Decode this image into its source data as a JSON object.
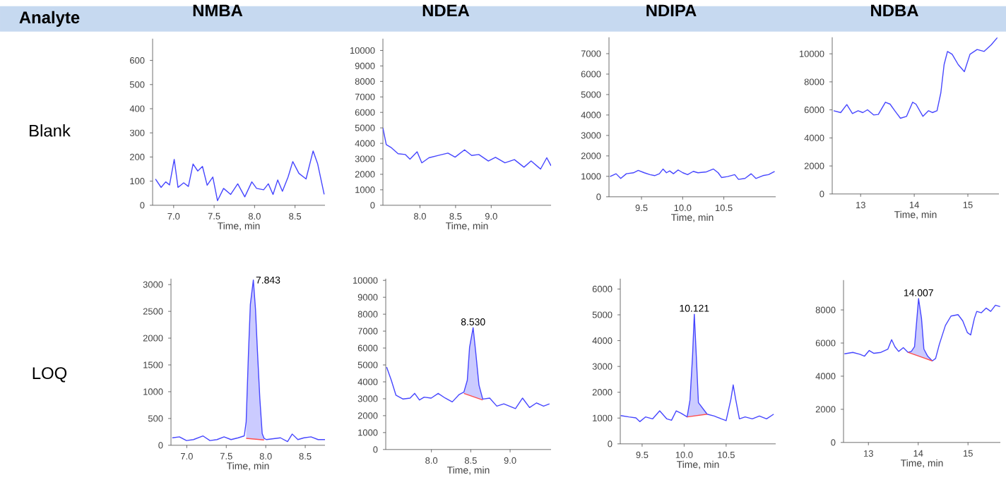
{
  "chart_data": [
    {
      "type": "other",
      "title": "Analyte",
      "annotations": [
        "Blank",
        "LOQ"
      ]
    },
    {
      "type": "line",
      "title": "NMBA",
      "xlabel": "Time, min",
      "xlim": [
        6.74,
        8.87
      ],
      "xticks": [
        {
          "value": 7.0,
          "label": "7.0"
        },
        7.5,
        {
          "value": 8.0,
          "label": "8.0"
        },
        8.5
      ],
      "ylim": [
        0,
        690
      ],
      "yticks": [
        0,
        100,
        200,
        300,
        400,
        500,
        600
      ],
      "series": [
        {
          "color": "#4646ff",
          "x": [
            6.775,
            6.845,
            6.902,
            6.949,
            7.007,
            7.054,
            7.124,
            7.182,
            7.24,
            7.298,
            7.356,
            7.414,
            7.484,
            7.542,
            7.617,
            7.705,
            7.792,
            7.879,
            7.966,
            8.025,
            8.112,
            8.17,
            8.228,
            8.286,
            8.344,
            8.414,
            8.472,
            8.548,
            8.636,
            8.723,
            8.78,
            8.86
          ],
          "values": [
            109,
            74,
            97,
            84,
            190,
            74,
            93,
            78,
            171,
            142,
            161,
            83,
            117,
            19,
            70,
            45,
            89,
            35,
            97,
            70,
            64,
            89,
            45,
            105,
            58,
            117,
            181,
            132,
            109,
            225,
            171,
            45
          ]
        }
      ]
    },
    {
      "type": "line",
      "title": "NDEA",
      "xlabel": "Time, min",
      "xlim": [
        7.48,
        9.84
      ],
      "xticks": [
        {
          "value": 8.0,
          "label": "8.0"
        },
        8.5,
        {
          "value": 9.0,
          "label": "9.0"
        }
      ],
      "ylim": [
        0,
        10760
      ],
      "yticks": [
        0,
        1000,
        2000,
        3000,
        4000,
        5000,
        6000,
        7000,
        8000,
        9000,
        10000
      ],
      "series": [
        {
          "color": "#4646ff",
          "x": [
            7.48,
            7.527,
            7.593,
            7.693,
            7.793,
            7.86,
            7.96,
            8.026,
            8.126,
            8.26,
            8.393,
            8.493,
            8.626,
            8.726,
            8.826,
            8.96,
            9.06,
            9.193,
            9.326,
            9.46,
            9.56,
            9.693,
            9.78,
            9.84
          ],
          "values": [
            4990,
            3920,
            3740,
            3330,
            3280,
            2980,
            3460,
            2740,
            3070,
            3220,
            3370,
            3110,
            3580,
            3220,
            3280,
            2860,
            3100,
            2740,
            2950,
            2460,
            2860,
            2340,
            3070,
            2550
          ]
        }
      ]
    },
    {
      "type": "line",
      "title": "NDIPA",
      "xlabel": "Time, min",
      "xlim": [
        9.105,
        11.13
      ],
      "xticks": [
        9.5,
        {
          "value": 10.0,
          "label": "10.0"
        },
        10.5
      ],
      "ylim": [
        0,
        7800
      ],
      "yticks": [
        0,
        1000,
        2000,
        3000,
        4000,
        5000,
        6000,
        7000
      ],
      "series": [
        {
          "color": "#4646ff",
          "x": [
            9.117,
            9.191,
            9.248,
            9.316,
            9.402,
            9.46,
            9.534,
            9.602,
            9.659,
            9.717,
            9.762,
            9.803,
            9.842,
            9.888,
            9.945,
            10.002,
            10.06,
            10.129,
            10.186,
            10.289,
            10.374,
            10.431,
            10.472,
            10.546,
            10.632,
            10.678,
            10.757,
            10.832,
            10.889,
            10.975,
            11.043,
            11.117
          ],
          "values": [
            990,
            1128,
            898,
            1128,
            1175,
            1290,
            1175,
            1083,
            1036,
            1128,
            1359,
            1175,
            1267,
            1128,
            1313,
            1175,
            1083,
            1244,
            1175,
            1221,
            1359,
            1175,
            944,
            990,
            1083,
            852,
            898,
            1128,
            898,
            1036,
            1083,
            1244
          ]
        }
      ]
    },
    {
      "type": "line",
      "title": "NDBA",
      "xlabel": "Time, min",
      "xlim": [
        12.47,
        15.58
      ],
      "xticks": [
        13,
        14,
        15
      ],
      "ylim": [
        0,
        11180
      ],
      "yticks": [
        0,
        2000,
        4000,
        6000,
        8000,
        10000
      ],
      "series": [
        {
          "color": "#4646ff",
          "x": [
            12.496,
            12.628,
            12.742,
            12.847,
            12.953,
            13.041,
            13.128,
            13.242,
            13.33,
            13.462,
            13.549,
            13.637,
            13.742,
            13.857,
            13.97,
            14.032,
            14.162,
            14.267,
            14.338,
            14.425,
            14.496,
            14.557,
            14.62,
            14.707,
            14.82,
            14.935,
            15.04,
            15.173,
            15.304,
            15.436,
            15.549
          ],
          "values": [
            5941,
            5807,
            6377,
            5740,
            5941,
            5807,
            6008,
            5639,
            5673,
            6546,
            6411,
            5941,
            5404,
            5539,
            6546,
            6411,
            5539,
            5941,
            5807,
            5941,
            7217,
            9231,
            10171,
            9969,
            9231,
            8728,
            9969,
            10305,
            10171,
            10641,
            11150
          ]
        }
      ]
    },
    {
      "type": "line",
      "xlabel": "Time, min",
      "xlim": [
        6.8,
        8.75
      ],
      "xticks": [
        {
          "value": 7.0,
          "label": "7.0"
        },
        7.5,
        {
          "value": 8.0,
          "label": "8.0"
        },
        8.5
      ],
      "ylim": [
        0,
        3110
      ],
      "yticks": [
        0,
        500,
        1000,
        1500,
        2000,
        2500,
        3000
      ],
      "annotations": [
        {
          "text": "7.843",
          "x": 7.843,
          "y": 3085
        }
      ],
      "series": [
        {
          "color": "#4646ff",
          "x": [
            6.817,
            6.907,
            6.996,
            7.085,
            7.204,
            7.293,
            7.383,
            7.472,
            7.561,
            7.651,
            7.728,
            7.752,
            7.782,
            7.805,
            7.843,
            7.87,
            7.895,
            7.925,
            7.955,
            7.978,
            8.008,
            8.097,
            8.186,
            8.276,
            8.335,
            8.407,
            8.484,
            8.573,
            8.663,
            8.75
          ],
          "values": [
            139,
            157,
            88,
            106,
            175,
            88,
            106,
            157,
            106,
            139,
            175,
            438,
            1753,
            2629,
            3085,
            2542,
            1753,
            876,
            219,
            131,
            106,
            123,
            139,
            69,
            210,
            106,
            139,
            157,
            106,
            106
          ],
          "lower": [
            null,
            null,
            null,
            null,
            null,
            null,
            null,
            null,
            null,
            null,
            null,
            130,
            126,
            123,
            118,
            114,
            111,
            107,
            103,
            100,
            null,
            null,
            null,
            null,
            null,
            null,
            null,
            null,
            null,
            null
          ],
          "upper": [
            null,
            null,
            null,
            null,
            null,
            null,
            null,
            null,
            null,
            null,
            null,
            438,
            1753,
            2629,
            3085,
            2542,
            1753,
            876,
            219,
            131,
            null,
            null,
            null,
            null,
            null,
            null,
            null,
            null,
            null,
            null
          ]
        },
        {
          "color": "#ff4d4d",
          "x": [
            7.752,
            7.978
          ],
          "values": [
            130,
            100
          ]
        }
      ]
    },
    {
      "type": "line",
      "xlabel": "Time, min",
      "xlim": [
        7.42,
        9.52
      ],
      "xticks": [
        {
          "value": 8.0,
          "label": "8.0"
        },
        8.5,
        {
          "value": 9.0,
          "label": "9.0"
        }
      ],
      "ylim": [
        0,
        10100
      ],
      "yticks": [
        0,
        1000,
        2000,
        3000,
        4000,
        5000,
        6000,
        7000,
        8000,
        9000,
        10000
      ],
      "annotations": [
        {
          "text": "8.530",
          "x": 8.53,
          "y": 7200
        }
      ],
      "series": [
        {
          "color": "#4646ff",
          "x": [
            7.431,
            7.491,
            7.55,
            7.64,
            7.729,
            7.788,
            7.848,
            7.908,
            7.997,
            8.086,
            8.176,
            8.265,
            8.354,
            8.413,
            8.456,
            8.485,
            8.53,
            8.563,
            8.604,
            8.652,
            8.741,
            8.831,
            8.92,
            9.068,
            9.158,
            9.247,
            9.336,
            9.425,
            9.5
          ],
          "values": [
            4874,
            4093,
            3209,
            2984,
            3040,
            3318,
            2926,
            3094,
            3040,
            3318,
            3040,
            2814,
            3257,
            3400,
            4093,
            6045,
            7200,
            5762,
            3816,
            2981,
            3040,
            2563,
            2700,
            2422,
            3040,
            2480,
            2756,
            2563,
            2700
          ],
          "lower": [
            null,
            null,
            null,
            null,
            null,
            null,
            null,
            null,
            null,
            null,
            null,
            null,
            null,
            3318,
            3247,
            3200,
            3126,
            3072,
            3005,
            2926,
            null,
            null,
            null,
            null,
            null,
            null,
            null,
            null,
            null
          ],
          "upper": [
            null,
            null,
            null,
            null,
            null,
            null,
            null,
            null,
            null,
            null,
            null,
            null,
            null,
            3400,
            4093,
            6045,
            7200,
            5762,
            3816,
            2981,
            null,
            null,
            null,
            null,
            null,
            null,
            null,
            null,
            null
          ]
        },
        {
          "color": "#ff4d4d",
          "x": [
            8.413,
            8.652
          ],
          "values": [
            3318,
            2926
          ]
        }
      ]
    },
    {
      "type": "line",
      "xlabel": "Time, min",
      "xlim": [
        9.24,
        11.09
      ],
      "xticks": [
        9.5,
        {
          "value": 10.0,
          "label": "10.0"
        },
        10.5
      ],
      "ylim": [
        0,
        6400
      ],
      "yticks": [
        0,
        1000,
        2000,
        3000,
        4000,
        5000,
        6000
      ],
      "annotations": [
        {
          "text": "10.121",
          "x": 10.121,
          "y": 5025
        }
      ],
      "series": [
        {
          "color": "#4646ff",
          "x": [
            9.245,
            9.342,
            9.426,
            9.472,
            9.54,
            9.624,
            9.709,
            9.794,
            9.85,
            9.906,
            9.963,
            10.036,
            10.07,
            10.1,
            10.121,
            10.145,
            10.17,
            10.274,
            10.359,
            10.443,
            10.5,
            10.557,
            10.584,
            10.613,
            10.658,
            10.726,
            10.811,
            10.896,
            10.981,
            11.066
          ],
          "values": [
            1097,
            1043,
            1006,
            860,
            1043,
            968,
            1280,
            968,
            915,
            1280,
            1189,
            1043,
            1700,
            3400,
            5025,
            3400,
            1600,
            1151,
            1080,
            968,
            899,
            1737,
            2285,
            1737,
            968,
            1043,
            968,
            1080,
            968,
            1151
          ],
          "lower": [
            null,
            null,
            null,
            null,
            null,
            null,
            null,
            null,
            null,
            null,
            null,
            1043,
            1058,
            1072,
            1082,
            1092,
            1104,
            1151,
            null,
            null,
            null,
            null,
            null,
            null,
            null,
            null,
            null,
            null,
            null,
            null
          ],
          "upper": [
            null,
            null,
            null,
            null,
            null,
            null,
            null,
            null,
            null,
            null,
            null,
            1043,
            1700,
            3400,
            5025,
            3400,
            1600,
            1151,
            null,
            null,
            null,
            null,
            null,
            null,
            null,
            null,
            null,
            null,
            null,
            null
          ]
        },
        {
          "color": "#ff4d4d",
          "x": [
            10.036,
            10.274
          ],
          "values": [
            1043,
            1151
          ]
        }
      ]
    },
    {
      "type": "line",
      "xlabel": "Time, min",
      "xlim": [
        12.5,
        15.65
      ],
      "xticks": [
        13,
        14,
        15
      ],
      "ylim": [
        0,
        9800
      ],
      "yticks": [
        0,
        2000,
        4000,
        6000,
        8000
      ],
      "annotations": [
        {
          "text": "14.007",
          "x": 14.007,
          "y": 8683
        }
      ],
      "series": [
        {
          "color": "#4646ff",
          "x": [
            12.518,
            12.687,
            12.828,
            12.922,
            13.016,
            13.11,
            13.25,
            13.391,
            13.466,
            13.532,
            13.607,
            13.701,
            13.796,
            13.861,
            13.926,
            13.974,
            14.007,
            14.066,
            14.114,
            14.19,
            14.283,
            14.349,
            14.424,
            14.546,
            14.659,
            14.8,
            14.894,
            14.988,
            15.053,
            15.128,
            15.176,
            15.269,
            15.363,
            15.456,
            15.551,
            15.645
          ],
          "values": [
            5352,
            5437,
            5323,
            5209,
            5551,
            5380,
            5437,
            5636,
            6205,
            5778,
            5494,
            5722,
            5437,
            5494,
            5778,
            7486,
            8683,
            7486,
            5636,
            5209,
            4924,
            5067,
            5921,
            7060,
            7629,
            7714,
            7344,
            6632,
            6490,
            7486,
            7913,
            7828,
            8113,
            7913,
            8284,
            8198
          ],
          "lower": [
            null,
            null,
            null,
            null,
            null,
            null,
            null,
            null,
            null,
            null,
            null,
            null,
            5437,
            5369,
            5300,
            5250,
            5215,
            5153,
            5102,
            5022,
            4924,
            null,
            null,
            null,
            null,
            null,
            null,
            null,
            null,
            null,
            null,
            null,
            null,
            null,
            null,
            null
          ],
          "upper": [
            null,
            null,
            null,
            null,
            null,
            null,
            null,
            null,
            null,
            null,
            null,
            null,
            5437,
            5494,
            5778,
            7486,
            8683,
            7486,
            5636,
            5209,
            4924,
            null,
            null,
            null,
            null,
            null,
            null,
            null,
            null,
            null,
            null,
            null,
            null,
            null,
            null,
            null
          ]
        },
        {
          "color": "#ff4d4d",
          "x": [
            13.796,
            14.283
          ],
          "values": [
            5437,
            4924
          ]
        }
      ]
    }
  ]
}
